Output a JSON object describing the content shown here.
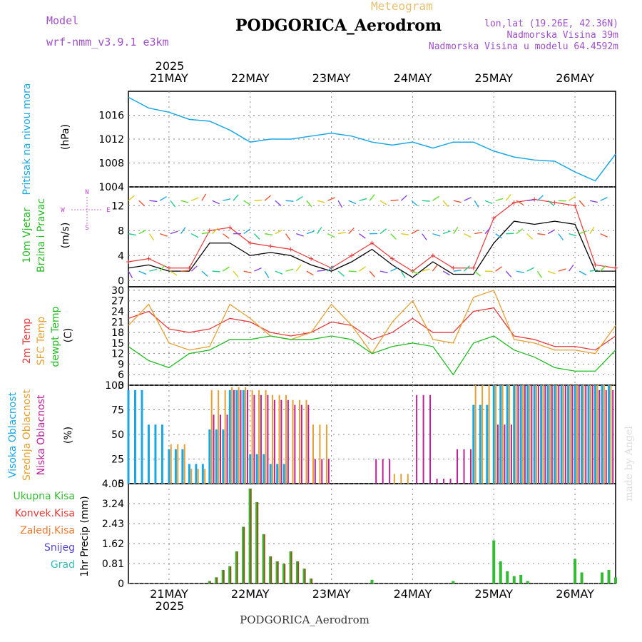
{
  "header": {
    "model_label": "Model",
    "model_name": "wrf-nmm_v3.9.1 e3km",
    "meteogram_label": "Meteogram",
    "station": "PODGORICA_Aerodrom",
    "lonlat": "lon,lat (19.26E, 42.36N)",
    "elevation": "Nadmorska Visina 39m",
    "model_elevation": "Nadmorska Visina u modelu 64.4592m",
    "year": "2025",
    "footer_station": "PODGORICA_Aerodrom",
    "watermark": "made by Angel"
  },
  "colors": {
    "pressure": "#1aa7e6",
    "wind_label": "#22bb22",
    "dir_label": "#bb44cc",
    "temp2m": "#e83a3a",
    "sfctemp": "#e6a030",
    "dewpt": "#22bb22",
    "cloud_high": "#1aa7e6",
    "cloud_mid": "#e6a030",
    "cloud_low": "#bb2299",
    "precip_total": "#33bb33",
    "precip_conv": "#e83a3a",
    "precip_frozen": "#f07a30",
    "precip_snow": "#5544cc",
    "precip_grad": "#33bbbb",
    "title_purple": "#a050c8",
    "title_gold": "#e6c070"
  },
  "chart_data": [
    {
      "type": "line",
      "title": "",
      "ylabel": "Pritisak na nivou mora",
      "unit": "(hPa)",
      "ylim": [
        1004,
        1020
      ],
      "yticks": [
        1004,
        1008,
        1012,
        1016
      ],
      "x": [
        0,
        6,
        12,
        18,
        24,
        30,
        36,
        42,
        48,
        54,
        60,
        66,
        72,
        78,
        84,
        90,
        96,
        102,
        108,
        114,
        120,
        126,
        132,
        138,
        144
      ],
      "values": [
        1019,
        1017.2,
        1016.5,
        1015.3,
        1015,
        1013.5,
        1011.5,
        1012,
        1012,
        1012.5,
        1013,
        1012.5,
        1011.5,
        1011,
        1011.5,
        1010.5,
        1011.5,
        1011.5,
        1010,
        1009,
        1008.5,
        1008.3,
        1006.5,
        1005,
        1009.5
      ]
    },
    {
      "type": "line",
      "ylabel": "10m Vjetar",
      "ylabel2": "Brzina i Pravac",
      "unit": "(m/s)",
      "ylim": [
        -1,
        15
      ],
      "yticks": [
        0,
        4,
        8,
        12
      ],
      "legend_compass": [
        "N",
        "W",
        "E",
        "S"
      ],
      "series": [
        {
          "name": "wind speed",
          "x": [
            0,
            6,
            12,
            18,
            24,
            30,
            36,
            42,
            48,
            54,
            60,
            66,
            72,
            78,
            84,
            90,
            96,
            102,
            108,
            114,
            120,
            126,
            132,
            138,
            144
          ],
          "values": [
            2,
            2.5,
            1.5,
            1.5,
            6,
            6,
            4,
            4.5,
            4,
            2.5,
            1.5,
            3,
            5,
            2.5,
            0.5,
            3,
            1,
            1,
            6,
            9.5,
            9,
            9.5,
            9,
            1.5,
            1.5
          ]
        },
        {
          "name": "wind gust",
          "x": [
            0,
            6,
            12,
            18,
            24,
            30,
            36,
            42,
            48,
            54,
            60,
            66,
            72,
            78,
            84,
            90,
            96,
            102,
            108,
            114,
            120,
            126,
            132,
            138,
            144
          ],
          "values": [
            3,
            3.5,
            2,
            2,
            8,
            8.5,
            6,
            5.5,
            5,
            3.5,
            2,
            4,
            6,
            3.5,
            1.5,
            4,
            2,
            2,
            10,
            12.5,
            13,
            12.5,
            12,
            2.5,
            2
          ]
        }
      ]
    },
    {
      "type": "line",
      "ylabel": "2m Temp",
      "ylabel2": "SFC Temp",
      "ylabel3": "dewpt Temp",
      "unit": "(C)",
      "ylim": [
        3,
        31
      ],
      "yticks": [
        3,
        6,
        9,
        12,
        15,
        18,
        21,
        24,
        27,
        30
      ],
      "x": [
        0,
        6,
        12,
        18,
        24,
        30,
        36,
        42,
        48,
        54,
        60,
        66,
        72,
        78,
        84,
        90,
        96,
        102,
        108,
        114,
        120,
        126,
        132,
        138,
        144
      ],
      "series": [
        {
          "name": "2m Temp",
          "values": [
            22,
            24,
            19,
            18,
            19,
            22,
            21,
            18,
            17,
            18,
            21,
            20,
            16,
            18,
            22,
            18,
            18,
            24,
            25,
            17,
            16,
            14,
            14,
            13,
            17
          ]
        },
        {
          "name": "SFC Temp",
          "values": [
            20,
            26,
            15,
            13,
            14,
            26,
            22,
            17,
            16,
            18,
            26,
            20,
            12,
            21,
            27,
            16,
            15,
            28,
            30,
            16,
            15,
            13,
            13,
            12,
            20
          ]
        },
        {
          "name": "dewpt Temp",
          "values": [
            14,
            10,
            8,
            12,
            13,
            16,
            16,
            17,
            16,
            16,
            17,
            16,
            12,
            14,
            15,
            14,
            6,
            15,
            17,
            13,
            11,
            8,
            7,
            7,
            13
          ]
        }
      ]
    },
    {
      "type": "bar",
      "ylabel": "Visoka Oblacnost",
      "ylabel2": "Srednja Oblacnost",
      "ylabel3": "Niska Oblacnost",
      "unit": "(%)",
      "ylim": [
        0,
        100
      ],
      "yticks": [
        0,
        25,
        50,
        75,
        100
      ],
      "x": [
        0,
        6,
        12,
        18,
        24,
        30,
        36,
        42,
        48,
        54,
        60,
        66,
        72,
        78,
        84,
        90,
        96,
        102,
        108,
        114,
        120,
        126,
        132,
        138,
        144
      ],
      "series": [
        {
          "name": "Visoka",
          "values": [
            95,
            60,
            35,
            20,
            55,
            95,
            30,
            20,
            0,
            0,
            0,
            0,
            0,
            0,
            0,
            0,
            0,
            80,
            100,
            100,
            100,
            100,
            100,
            100,
            100
          ]
        },
        {
          "name": "Srednja",
          "values": [
            0,
            0,
            40,
            15,
            95,
            98,
            95,
            90,
            85,
            60,
            0,
            0,
            0,
            10,
            0,
            0,
            0,
            100,
            100,
            100,
            100,
            100,
            100,
            100,
            100
          ]
        },
        {
          "name": "Niska",
          "values": [
            0,
            0,
            0,
            0,
            70,
            95,
            90,
            85,
            80,
            25,
            0,
            0,
            25,
            0,
            90,
            5,
            35,
            0,
            60,
            100,
            100,
            100,
            100,
            95,
            100
          ]
        }
      ]
    },
    {
      "type": "bar",
      "ylabel": "1hr Precip (mm)",
      "legend": [
        "Ukupna Kisa",
        "Konvek.Kisa",
        "Zaledj.Kisa",
        "Snijeg",
        "Grad"
      ],
      "ylim": [
        0,
        4.05
      ],
      "yticks": [
        0,
        0.81,
        1.62,
        2.43,
        3.24,
        4.05
      ],
      "x": [
        24,
        26,
        28,
        30,
        32,
        34,
        36,
        38,
        40,
        42,
        44,
        46,
        48,
        50,
        52,
        54,
        72,
        96,
        108,
        110,
        112,
        114,
        116,
        118,
        132,
        134,
        140,
        142,
        144
      ],
      "values": [
        0.1,
        0.25,
        0.55,
        0.7,
        1.3,
        2.3,
        3.85,
        3.3,
        2.0,
        1.1,
        0.9,
        0.8,
        1.3,
        0.9,
        0.6,
        0.2,
        0.15,
        0.1,
        1.75,
        0.9,
        0.5,
        0.3,
        0.35,
        0.1,
        1.0,
        0.45,
        0.45,
        0.55,
        0.25
      ]
    }
  ],
  "x_axis": {
    "top_labels": [
      "21MAY",
      "22MAY",
      "23MAY",
      "24MAY",
      "25MAY",
      "26MAY"
    ],
    "bottom_labels": [
      "21MAY",
      "22MAY",
      "23MAY",
      "24MAY",
      "25MAY",
      "26MAY"
    ]
  }
}
